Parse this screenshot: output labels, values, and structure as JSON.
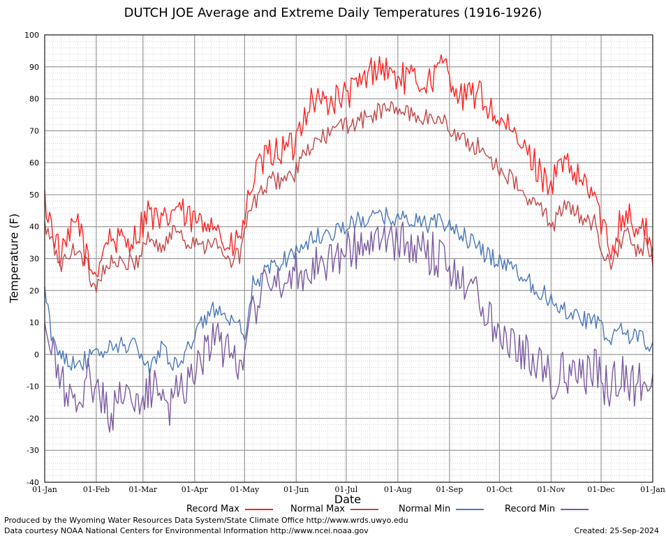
{
  "chart_data": {
    "type": "line",
    "title": "DUTCH JOE Average and Extreme Daily Temperatures (1916-1926)",
    "xlabel": "Date",
    "ylabel": "Temperature (F)",
    "ylim": [
      -40,
      100
    ],
    "yticks": [
      100,
      90,
      80,
      70,
      60,
      50,
      40,
      30,
      20,
      10,
      0,
      -10,
      -20,
      -30,
      -40
    ],
    "xticks": [
      {
        "label": "01-Jan",
        "day": 0
      },
      {
        "label": "01-Feb",
        "day": 31
      },
      {
        "label": "01-Mar",
        "day": 59
      },
      {
        "label": "01-Apr",
        "day": 90
      },
      {
        "label": "01-May",
        "day": 120
      },
      {
        "label": "01-Jun",
        "day": 151
      },
      {
        "label": "01-Jul",
        "day": 181
      },
      {
        "label": "01-Aug",
        "day": 212
      },
      {
        "label": "01-Sep",
        "day": 243
      },
      {
        "label": "01-Oct",
        "day": 273
      },
      {
        "label": "01-Nov",
        "day": 304
      },
      {
        "label": "01-Dec",
        "day": 334
      },
      {
        "label": "01-Jan",
        "day": 365
      }
    ],
    "grid": true,
    "legend_position": "bottom",
    "series": [
      {
        "name": "Record Max",
        "color": "#ff2020",
        "anchors": [
          [
            0,
            48
          ],
          [
            10,
            30
          ],
          [
            20,
            43
          ],
          [
            25,
            30
          ],
          [
            30,
            25
          ],
          [
            38,
            37
          ],
          [
            45,
            35
          ],
          [
            55,
            37
          ],
          [
            62,
            45
          ],
          [
            70,
            40
          ],
          [
            80,
            47
          ],
          [
            85,
            42
          ],
          [
            90,
            42
          ],
          [
            95,
            40
          ],
          [
            100,
            44
          ],
          [
            110,
            32
          ],
          [
            117,
            36
          ],
          [
            120,
            42
          ],
          [
            125,
            55
          ],
          [
            135,
            63
          ],
          [
            150,
            65
          ],
          [
            153,
            72
          ],
          [
            160,
            80
          ],
          [
            170,
            79
          ],
          [
            181,
            81
          ],
          [
            190,
            85
          ],
          [
            200,
            91
          ],
          [
            210,
            87
          ],
          [
            220,
            86
          ],
          [
            230,
            85
          ],
          [
            240,
            91
          ],
          [
            250,
            80
          ],
          [
            260,
            82
          ],
          [
            270,
            75
          ],
          [
            280,
            69
          ],
          [
            290,
            63
          ],
          [
            300,
            55
          ],
          [
            305,
            54
          ],
          [
            310,
            60
          ],
          [
            320,
            55
          ],
          [
            330,
            50
          ],
          [
            335,
            40
          ],
          [
            340,
            32
          ],
          [
            345,
            42
          ],
          [
            350,
            45
          ],
          [
            355,
            38
          ],
          [
            360,
            40
          ],
          [
            365,
            31
          ]
        ]
      },
      {
        "name": "Normal Max",
        "color": "#c04848",
        "anchors": [
          [
            0,
            40
          ],
          [
            10,
            28
          ],
          [
            20,
            34
          ],
          [
            25,
            28
          ],
          [
            30,
            21
          ],
          [
            38,
            29
          ],
          [
            45,
            28
          ],
          [
            55,
            29
          ],
          [
            62,
            37
          ],
          [
            70,
            33
          ],
          [
            80,
            40
          ],
          [
            85,
            35
          ],
          [
            90,
            36
          ],
          [
            95,
            34
          ],
          [
            100,
            36
          ],
          [
            110,
            29
          ],
          [
            117,
            31
          ],
          [
            120,
            39
          ],
          [
            125,
            47
          ],
          [
            135,
            54
          ],
          [
            150,
            56
          ],
          [
            153,
            60
          ],
          [
            160,
            65
          ],
          [
            170,
            69
          ],
          [
            181,
            72
          ],
          [
            190,
            73
          ],
          [
            200,
            76
          ],
          [
            210,
            77
          ],
          [
            220,
            75
          ],
          [
            230,
            74
          ],
          [
            240,
            73
          ],
          [
            250,
            67
          ],
          [
            260,
            65
          ],
          [
            270,
            60
          ],
          [
            280,
            55
          ],
          [
            290,
            48
          ],
          [
            300,
            45
          ],
          [
            305,
            40
          ],
          [
            310,
            46
          ],
          [
            320,
            44
          ],
          [
            330,
            41
          ],
          [
            335,
            33
          ],
          [
            340,
            26
          ],
          [
            345,
            35
          ],
          [
            350,
            38
          ],
          [
            355,
            31
          ],
          [
            360,
            34
          ],
          [
            365,
            31
          ]
        ]
      },
      {
        "name": "Normal Min",
        "color": "#4a78b8",
        "anchors": [
          [
            0,
            20
          ],
          [
            5,
            3
          ],
          [
            15,
            -2
          ],
          [
            25,
            -2
          ],
          [
            31,
            0
          ],
          [
            45,
            3
          ],
          [
            55,
            3
          ],
          [
            62,
            -5
          ],
          [
            70,
            3
          ],
          [
            80,
            -5
          ],
          [
            85,
            3
          ],
          [
            90,
            5
          ],
          [
            95,
            10
          ],
          [
            100,
            15
          ],
          [
            110,
            10
          ],
          [
            117,
            8
          ],
          [
            120,
            3
          ],
          [
            125,
            22
          ],
          [
            135,
            27
          ],
          [
            150,
            32
          ],
          [
            160,
            36
          ],
          [
            170,
            38
          ],
          [
            181,
            40
          ],
          [
            190,
            42
          ],
          [
            200,
            43
          ],
          [
            210,
            43
          ],
          [
            220,
            42
          ],
          [
            230,
            41
          ],
          [
            240,
            41
          ],
          [
            250,
            38
          ],
          [
            260,
            33
          ],
          [
            270,
            30
          ],
          [
            280,
            28
          ],
          [
            290,
            23
          ],
          [
            300,
            19
          ],
          [
            305,
            16
          ],
          [
            310,
            15
          ],
          [
            320,
            12
          ],
          [
            330,
            10
          ],
          [
            335,
            8
          ],
          [
            340,
            3
          ],
          [
            345,
            10
          ],
          [
            350,
            5
          ],
          [
            355,
            7
          ],
          [
            360,
            4
          ],
          [
            365,
            3
          ]
        ]
      },
      {
        "name": "Record Min",
        "color": "#7a5aa0",
        "anchors": [
          [
            0,
            8
          ],
          [
            5,
            -2
          ],
          [
            15,
            -14
          ],
          [
            20,
            -22
          ],
          [
            25,
            -5
          ],
          [
            31,
            -10
          ],
          [
            40,
            -20
          ],
          [
            45,
            -10
          ],
          [
            55,
            -17
          ],
          [
            62,
            -12
          ],
          [
            70,
            -8
          ],
          [
            75,
            -18
          ],
          [
            80,
            -10
          ],
          [
            85,
            -8
          ],
          [
            90,
            -5
          ],
          [
            95,
            0
          ],
          [
            100,
            5
          ],
          [
            110,
            0
          ],
          [
            117,
            -1
          ],
          [
            120,
            2
          ],
          [
            125,
            15
          ],
          [
            135,
            22
          ],
          [
            150,
            25
          ],
          [
            160,
            28
          ],
          [
            170,
            30
          ],
          [
            181,
            32
          ],
          [
            190,
            34
          ],
          [
            200,
            35
          ],
          [
            210,
            35
          ],
          [
            220,
            34
          ],
          [
            230,
            32
          ],
          [
            240,
            30
          ],
          [
            250,
            25
          ],
          [
            260,
            18
          ],
          [
            270,
            10
          ],
          [
            280,
            5
          ],
          [
            290,
            0
          ],
          [
            300,
            -5
          ],
          [
            305,
            -8
          ],
          [
            310,
            -5
          ],
          [
            320,
            -8
          ],
          [
            330,
            -5
          ],
          [
            335,
            -8
          ],
          [
            340,
            -12
          ],
          [
            345,
            -5
          ],
          [
            350,
            -8
          ],
          [
            355,
            -10
          ],
          [
            360,
            -8
          ],
          [
            365,
            -5
          ]
        ]
      }
    ]
  },
  "legend": {
    "record_max": "Record Max",
    "normal_max": "Normal Max",
    "normal_min": "Normal Min",
    "record_min": "Record Min"
  },
  "footer": {
    "produced_by": "Produced by the Wyoming Water Resources Data System/State Climate Office http://www.wrds.uwyo.edu",
    "data_courtesy": "Data courtesy NOAA National Centers for Environmental Information http://www.ncei.noaa.gov",
    "created": "Created:  25-Sep-2024"
  }
}
